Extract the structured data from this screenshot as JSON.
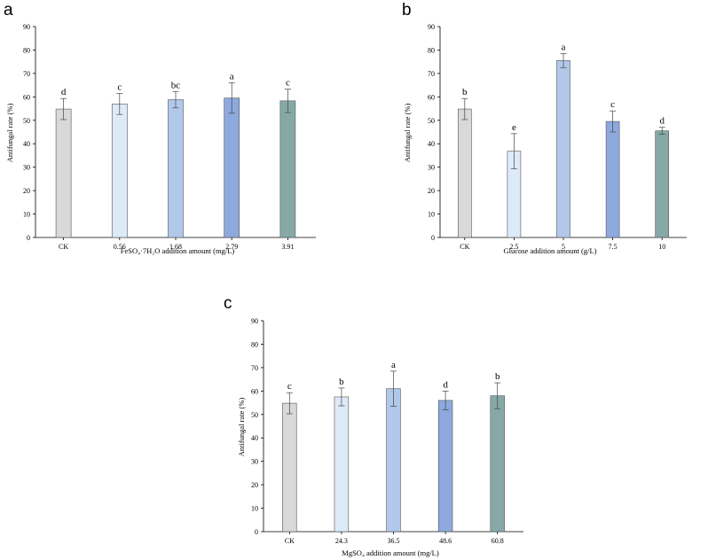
{
  "chart_data": [
    {
      "panel": "a",
      "type": "bar",
      "categories": [
        "CK",
        "0.56",
        "1.68",
        "2.79",
        "3.91"
      ],
      "values": [
        54.8,
        57.0,
        58.8,
        59.5,
        58.3
      ],
      "errors": [
        4.5,
        4.5,
        3.5,
        6.5,
        5.0
      ],
      "sig_letters": [
        "d",
        "c",
        "bc",
        "a",
        "c"
      ],
      "colors": [
        "#d9d9d9",
        "#ddeaf8",
        "#b1c8ea",
        "#8ea9de",
        "#86a9a8"
      ],
      "xlabel": "FeSO₄·7H₂O addition amount (mg/L)",
      "ylabel": "Antifungal rate (%)",
      "ylim": [
        0,
        90
      ],
      "yticks": [
        0,
        10,
        20,
        30,
        40,
        50,
        60,
        70,
        80,
        90
      ],
      "grid": false
    },
    {
      "panel": "b",
      "type": "bar",
      "categories": [
        "CK",
        "2.5",
        "5",
        "7.5",
        "10"
      ],
      "values": [
        54.8,
        36.8,
        75.5,
        49.5,
        45.5
      ],
      "errors": [
        4.5,
        7.5,
        3.0,
        4.5,
        1.5
      ],
      "sig_letters": [
        "b",
        "e",
        "a",
        "c",
        "d"
      ],
      "colors": [
        "#d9d9d9",
        "#ddeaf8",
        "#b1c8ea",
        "#8ea9de",
        "#86a9a8"
      ],
      "xlabel": "Glucose addition amount (g/L)",
      "ylabel": "Antifungal rate (%)",
      "ylim": [
        0,
        90
      ],
      "yticks": [
        0,
        10,
        20,
        30,
        40,
        50,
        60,
        70,
        80,
        90
      ],
      "grid": false
    },
    {
      "panel": "c",
      "type": "bar",
      "categories": [
        "CK",
        "24.3",
        "36.5",
        "48.6",
        "60.8"
      ],
      "values": [
        54.8,
        57.5,
        61.0,
        56.0,
        58.0
      ],
      "errors": [
        4.5,
        3.8,
        7.5,
        4.0,
        5.5
      ],
      "sig_letters": [
        "c",
        "b",
        "a",
        "d",
        "b"
      ],
      "colors": [
        "#d9d9d9",
        "#ddeaf8",
        "#b1c8ea",
        "#8ea9de",
        "#86a9a8"
      ],
      "xlabel": "MgSO₄ addition amount (mg/L)",
      "ylabel": "Antifungal rate (%)",
      "ylim": [
        0,
        90
      ],
      "yticks": [
        0,
        10,
        20,
        30,
        40,
        50,
        60,
        70,
        80,
        90
      ],
      "grid": false
    }
  ]
}
